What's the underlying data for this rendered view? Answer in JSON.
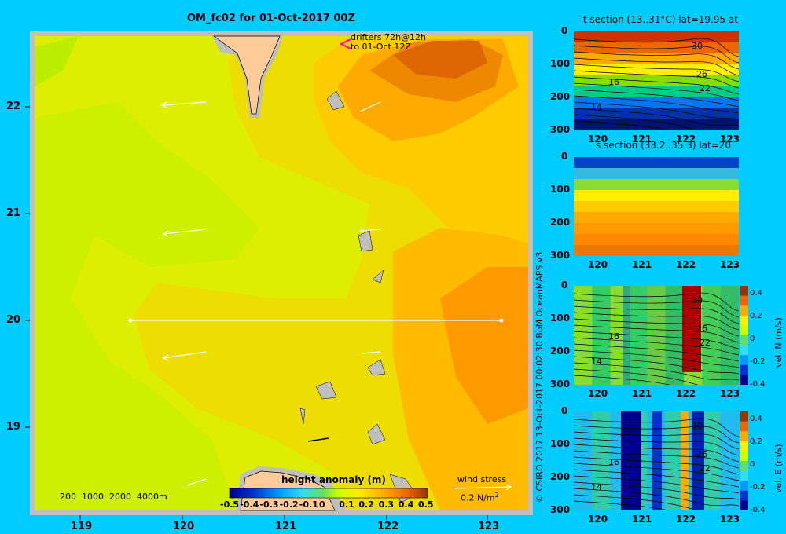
{
  "title": "OM_fc02 for 01-Oct-2017 00Z",
  "drifters_note": [
    "drifters 72h@12h",
    "to 01-Oct 12Z"
  ],
  "side_label": "© CSIRO 2017   13-Oct-2017 00:02:30 BoM OceanMAPS v3",
  "map": {
    "x_ticks": [
      "119",
      "120",
      "121",
      "122",
      "123"
    ],
    "y_ticks": [
      "22",
      "21",
      "20",
      "19"
    ],
    "depth_scale": "200  1000  2000  4000m",
    "colorbar_title": "height anomaly  (m)",
    "colorbar_ticks": [
      "-0.5",
      "-0.4",
      "-0.3",
      "-0.2",
      "-0.1",
      "0",
      "0.1",
      "0.2",
      "0.3",
      "0.4",
      "0.5"
    ],
    "wind_stress_label": "wind stress",
    "wind_stress_unit": "0.2 N/m",
    "wind_stress_sup": "2"
  },
  "panels": [
    {
      "title": "t section (13..31°C) lat=19.95 at",
      "y_ticks": [
        "0",
        "100",
        "200",
        "300"
      ],
      "x_ticks": [
        "120",
        "121",
        "122",
        "123"
      ],
      "contour_labels": [
        "30",
        "26",
        "22",
        "16",
        "14"
      ]
    },
    {
      "title": "s section (33.2..35.3) lat=20",
      "y_ticks": [
        "0",
        "100",
        "200",
        "300"
      ],
      "x_ticks": [
        "120",
        "121",
        "122",
        "123"
      ]
    },
    {
      "title": "",
      "y_ticks": [
        "0",
        "100",
        "200",
        "300"
      ],
      "x_ticks": [
        "120",
        "121",
        "122",
        "123"
      ],
      "colorbar_ticks": [
        "0.4",
        "0.2",
        "0",
        "-0.2",
        "-0.4"
      ],
      "colorbar_label": "vel. N (m/s)",
      "contour_labels": [
        "30",
        "26",
        "22",
        "16",
        "14"
      ]
    },
    {
      "title": "",
      "y_ticks": [
        "0",
        "100",
        "200",
        "300"
      ],
      "x_ticks": [
        "120",
        "121",
        "122",
        "123"
      ],
      "colorbar_ticks": [
        "0.4",
        "0.2",
        "0",
        "-0.2",
        "-0.4"
      ],
      "colorbar_label": "vel. E (m/s)",
      "contour_labels": [
        "30",
        "26",
        "22",
        "16",
        "14"
      ]
    }
  ],
  "chart_data": [
    {
      "type": "heatmap",
      "title": "OM_fc02 for 01-Oct-2017 00Z",
      "xlabel": "",
      "ylabel": "",
      "xlim": [
        118.5,
        123.5
      ],
      "ylim": [
        18.3,
        22.7
      ],
      "variable": "height anomaly (m)",
      "value_range": [
        -0.5,
        0.5
      ],
      "section_line": {
        "lat": 20,
        "lon": [
          119.5,
          123.2
        ]
      },
      "grid": false
    },
    {
      "type": "heatmap",
      "title": "t section (13..31°C) lat=19.95 at",
      "xlim": [
        119.6,
        123.3
      ],
      "ylim": [
        300,
        0
      ],
      "value_range": [
        13,
        31
      ]
    },
    {
      "type": "heatmap",
      "title": "s section (33.2..35.3) lat=20",
      "xlim": [
        119.6,
        123.3
      ],
      "ylim": [
        300,
        0
      ],
      "value_range": [
        33.2,
        35.3
      ]
    },
    {
      "type": "heatmap",
      "title": "",
      "xlim": [
        119.6,
        123.3
      ],
      "ylim": [
        300,
        0
      ],
      "value_range": [
        -0.4,
        0.4
      ],
      "colorbar_label": "vel. N (m/s)"
    },
    {
      "type": "heatmap",
      "title": "",
      "xlim": [
        119.6,
        123.3
      ],
      "ylim": [
        300,
        0
      ],
      "value_range": [
        -0.4,
        0.4
      ],
      "colorbar_label": "vel. E (m/s)"
    }
  ]
}
